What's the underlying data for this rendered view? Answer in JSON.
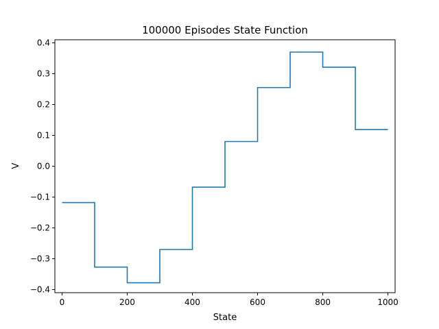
{
  "chart_data": {
    "type": "line",
    "title": "100000 Episodes State Function",
    "xlabel": "State",
    "ylabel": "V",
    "xlim": [
      -22,
      1022
    ],
    "ylim": [
      -0.41,
      0.41
    ],
    "xticks": [
      0,
      200,
      400,
      600,
      800,
      1000
    ],
    "xtick_labels": [
      "0",
      "200",
      "400",
      "600",
      "800",
      "1000"
    ],
    "yticks": [
      -0.4,
      -0.3,
      -0.2,
      -0.1,
      0.0,
      0.1,
      0.2,
      0.3,
      0.4
    ],
    "ytick_labels": [
      "−0.4",
      "−0.3",
      "−0.2",
      "−0.1",
      "0.0",
      "0.1",
      "0.2",
      "0.3",
      "0.4"
    ],
    "grid": false,
    "series": [
      {
        "color": "#1f77b4",
        "step_levels": [
          -0.118,
          -0.327,
          -0.378,
          -0.27,
          -0.068,
          0.08,
          0.255,
          0.37,
          0.321,
          0.119
        ],
        "x": [
          0,
          100,
          100,
          200,
          200,
          300,
          300,
          400,
          400,
          500,
          500,
          600,
          600,
          700,
          700,
          800,
          800,
          900,
          900,
          1000
        ],
        "y": [
          -0.118,
          -0.118,
          -0.327,
          -0.327,
          -0.378,
          -0.378,
          -0.27,
          -0.27,
          -0.068,
          -0.068,
          0.08,
          0.08,
          0.255,
          0.255,
          0.37,
          0.37,
          0.321,
          0.321,
          0.119,
          0.119
        ]
      }
    ]
  }
}
